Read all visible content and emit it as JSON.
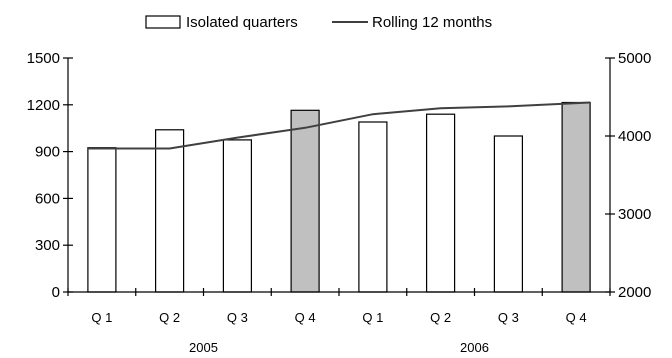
{
  "chart_data": {
    "type": "bar",
    "categories": [
      "Q 1",
      "Q 2",
      "Q 3",
      "Q 4",
      "Q 1",
      "Q 2",
      "Q 3",
      "Q 4"
    ],
    "groups": [
      "2005",
      "2006"
    ],
    "series": [
      {
        "name": "Isolated quarters",
        "kind": "bar",
        "axis": "left",
        "values": [
          925,
          1040,
          975,
          1165,
          1090,
          1140,
          1000,
          1215
        ],
        "highlight": [
          false,
          false,
          false,
          true,
          false,
          false,
          false,
          true
        ]
      },
      {
        "name": "Rolling 12 months",
        "kind": "line",
        "axis": "right",
        "values": [
          3840,
          3840,
          3980,
          4105,
          4280,
          4355,
          4380,
          4430
        ]
      }
    ],
    "yleft": {
      "ticks": [
        "0",
        "300",
        "600",
        "900",
        "1200",
        "1500"
      ],
      "lim": [
        0,
        1500
      ]
    },
    "yright": {
      "ticks": [
        "2000",
        "3000",
        "4000",
        "5000"
      ],
      "lim": [
        2000,
        5000
      ]
    },
    "grid": false,
    "legend_position": "top-center",
    "colors": {
      "bar": "#ffffff",
      "bar_highlight": "#c0c0c0",
      "line": "#404040",
      "axis": "#000000"
    }
  }
}
